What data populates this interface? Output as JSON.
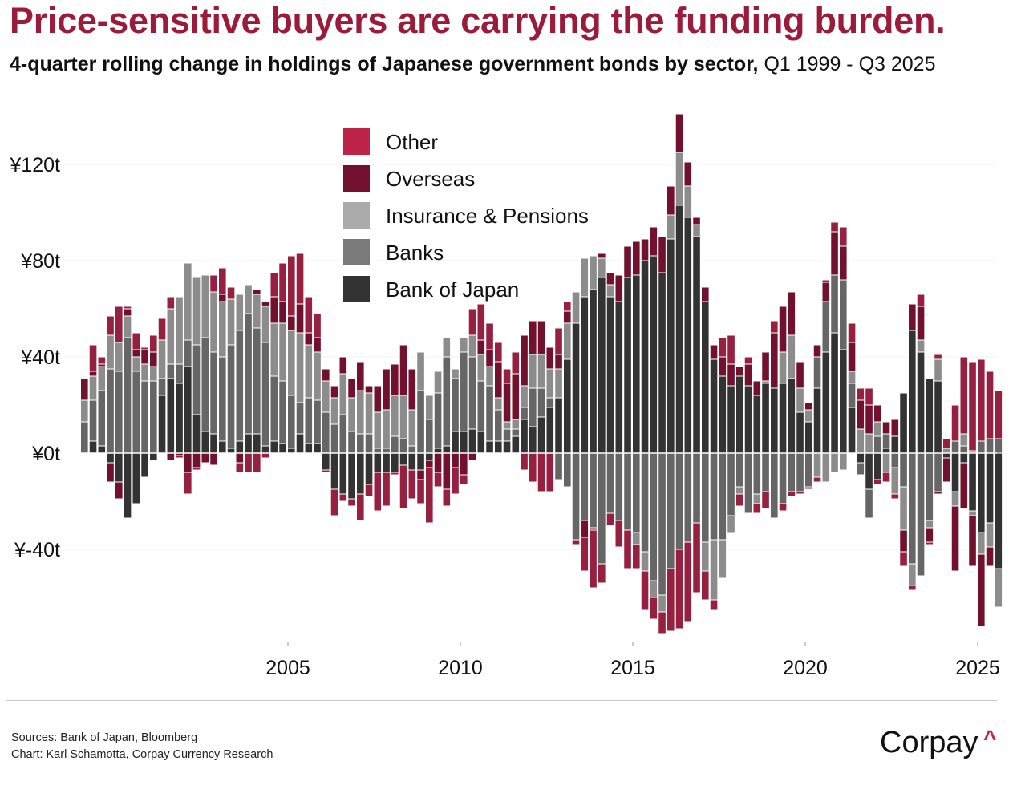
{
  "header": {
    "title": "Price-sensitive buyers are carrying the funding burden.",
    "subtitle_bold": "4-quarter rolling change in holdings of Japanese government bonds by sector,",
    "subtitle_range": " Q1 1999 - Q3 2025"
  },
  "footer": {
    "sources": "Sources: Bank of Japan, Bloomberg",
    "credit": "Chart: Karl Schamotta, Corpay Currency Research",
    "logo": "Corpay"
  },
  "chart_data": {
    "type": "bar",
    "stacked": true,
    "x_start": "Q1 1999",
    "x_end": "Q3 2025",
    "frequency": "quarterly",
    "x_tick_labels": [
      "2005",
      "2010",
      "2015",
      "2020",
      "2025"
    ],
    "y_tick_labels": [
      "¥120t",
      "¥80t",
      "¥40t",
      "¥0t",
      "¥-40t"
    ],
    "y_ticks": [
      120,
      80,
      40,
      0,
      -40
    ],
    "ylim": [
      -75,
      142
    ],
    "unit": "¥ trillion",
    "grid": true,
    "legend_placement": "top-center",
    "legend": [
      "Other",
      "Overseas",
      "Insurance & Pensions",
      "Banks",
      "Bank of Japan"
    ],
    "colors": {
      "Other": "#bd2447",
      "Overseas": "#72102f",
      "Insurance & Pensions": "#ababab",
      "Banks": "#7a7a7a",
      "Bank of Japan": "#333333"
    },
    "series": [
      {
        "name": "Bank of Japan",
        "values": [
          0,
          5,
          3,
          -4,
          -12,
          -27,
          -21,
          -10,
          -3,
          24,
          31,
          29,
          36,
          16,
          9,
          8,
          5,
          2,
          5,
          8,
          8,
          3,
          5,
          4,
          2,
          8,
          4,
          4,
          -7,
          -15,
          -17,
          -19,
          -17,
          -13,
          -8,
          -8,
          -8,
          -5,
          -7,
          -7,
          -3,
          2,
          3,
          9,
          9,
          10,
          9,
          5,
          5,
          5,
          7,
          14,
          11,
          15,
          19,
          23,
          39,
          54,
          65,
          68,
          73,
          65,
          63,
          73,
          74,
          80,
          82,
          75,
          89,
          103,
          98,
          90,
          63,
          39,
          32,
          28,
          32,
          28,
          24,
          29,
          27,
          29,
          31,
          17,
          13,
          27,
          42,
          50,
          43,
          19,
          -4,
          -15,
          -11,
          2,
          7,
          25,
          51,
          42,
          31,
          30,
          -2,
          -16,
          -4,
          -24,
          -33,
          -29,
          -48
        ]
      },
      {
        "name": "Banks",
        "values": [
          13,
          17,
          23,
          35,
          34,
          48,
          34,
          30,
          30,
          7,
          6,
          8,
          11,
          29,
          39,
          34,
          35,
          43,
          46,
          50,
          44,
          43,
          27,
          26,
          22,
          13,
          19,
          18,
          17,
          12,
          16,
          9,
          8,
          8,
          2,
          2,
          7,
          6,
          3,
          26,
          14,
          23,
          37,
          22,
          33,
          30,
          21,
          23,
          13,
          5,
          3,
          5,
          16,
          12,
          4,
          -11,
          -14,
          -36,
          -28,
          -31,
          -46,
          -25,
          -28,
          -32,
          -33,
          -41,
          -53,
          -59,
          -48,
          -40,
          -37,
          -29,
          -37,
          -36,
          -36,
          -26,
          -14,
          -25,
          -17,
          -16,
          -27,
          -21,
          -16,
          -16,
          -14,
          13,
          21,
          24,
          29,
          10,
          -5,
          -12,
          7,
          6,
          -6,
          -14,
          -46,
          -51,
          -28,
          -16,
          0,
          5,
          3,
          1,
          5,
          6,
          6
        ]
      },
      {
        "name": "Insurance & Pensions",
        "values": [
          9,
          10,
          10,
          14,
          12,
          9,
          6,
          7,
          6,
          16,
          23,
          28,
          32,
          28,
          26,
          25,
          23,
          19,
          15,
          12,
          14,
          15,
          22,
          24,
          27,
          29,
          22,
          20,
          13,
          11,
          17,
          14,
          18,
          17,
          15,
          16,
          17,
          18,
          15,
          16,
          10,
          9,
          8,
          4,
          6,
          9,
          11,
          8,
          5,
          3,
          4,
          9,
          14,
          14,
          12,
          12,
          15,
          13,
          16,
          14,
          8,
          5,
          0,
          0,
          -5,
          -8,
          -7,
          -7,
          10,
          22,
          13,
          5,
          -12,
          -25,
          -16,
          -7,
          -3,
          0,
          -4,
          1,
          0,
          13,
          18,
          10,
          5,
          -10,
          -12,
          -8,
          -7,
          5,
          10,
          8,
          6,
          -8,
          -11,
          -18,
          -9,
          5,
          -3,
          9,
          2,
          -6,
          5,
          -2,
          -9,
          -10,
          -16
        ]
      },
      {
        "name": "Overseas",
        "values": [
          9,
          2,
          1,
          -8,
          -7,
          3,
          3,
          6,
          6,
          0,
          -3,
          -1,
          -8,
          -6,
          -4,
          -5,
          3,
          0,
          -4,
          0,
          2,
          2,
          11,
          9,
          6,
          12,
          5,
          6,
          5,
          5,
          7,
          8,
          12,
          3,
          11,
          17,
          13,
          21,
          17,
          -4,
          -3,
          -8,
          -15,
          -6,
          -9,
          -3,
          6,
          7,
          15,
          16,
          19,
          21,
          14,
          14,
          9,
          6,
          5,
          0,
          -7,
          -1,
          2,
          5,
          11,
          13,
          14,
          9,
          12,
          15,
          12,
          16,
          10,
          3,
          6,
          6,
          8,
          9,
          4,
          9,
          6,
          12,
          23,
          19,
          18,
          11,
          3,
          5,
          8,
          18,
          14,
          12,
          12,
          12,
          7,
          5,
          7,
          -9,
          11,
          14,
          -6,
          -1,
          -10,
          -27,
          -19,
          -21,
          -30,
          -8,
          0
        ]
      },
      {
        "name": "Other",
        "values": [
          0,
          11,
          3,
          8,
          15,
          1,
          7,
          1,
          7,
          9,
          5,
          -1,
          -9,
          -1,
          0,
          7,
          11,
          5,
          -4,
          -8,
          -8,
          -2,
          10,
          16,
          25,
          21,
          15,
          10,
          -1,
          -11,
          -3,
          -3,
          -11,
          -5,
          -16,
          -14,
          -1,
          -18,
          -12,
          -10,
          -23,
          -6,
          -7,
          -11,
          -4,
          11,
          15,
          11,
          8,
          6,
          9,
          -7,
          -12,
          -16,
          -16,
          11,
          4,
          -2,
          -14,
          -24,
          -8,
          -5,
          -11,
          -16,
          -10,
          -16,
          -9,
          -9,
          -26,
          -33,
          -33,
          -29,
          -12,
          -4,
          8,
          12,
          -5,
          3,
          -4,
          -7,
          5,
          -3,
          -2,
          -1,
          -1,
          -2,
          1,
          4,
          8,
          8,
          5,
          7,
          -2,
          -4,
          -2,
          -6,
          -2,
          5,
          -1,
          2,
          4,
          15,
          32,
          37,
          34,
          28,
          20
        ]
      }
    ]
  }
}
